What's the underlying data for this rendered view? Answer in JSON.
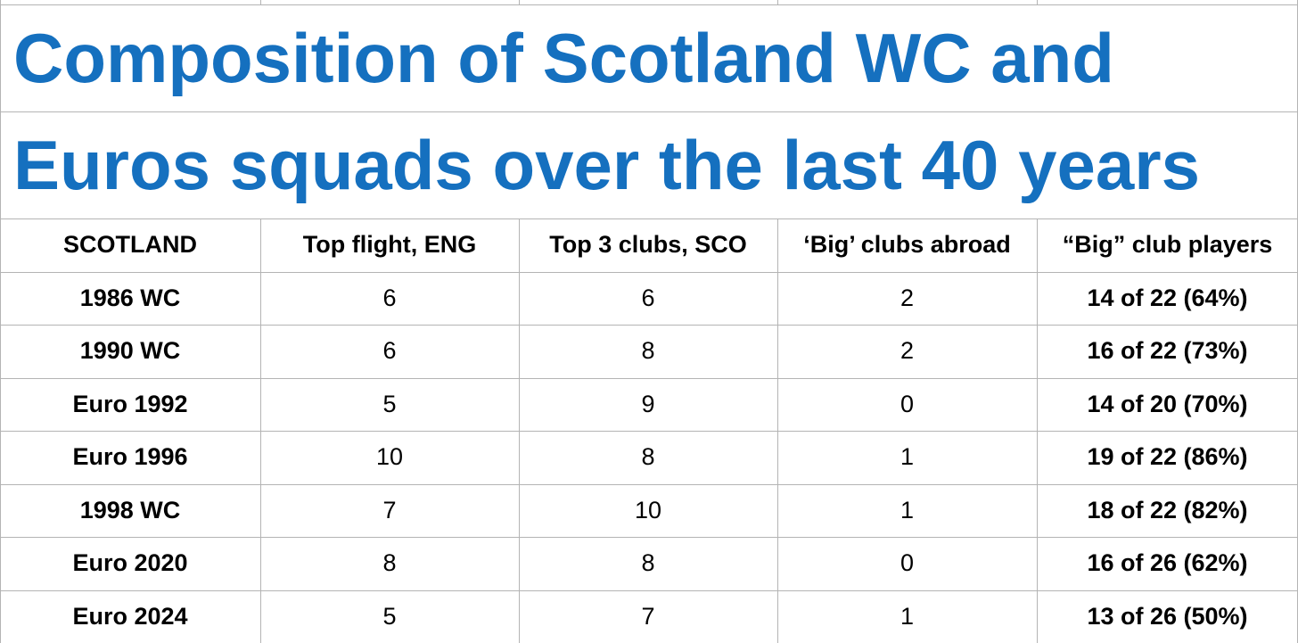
{
  "title": {
    "lines": [
      "Composition of Scotland WC and",
      "Euros squads over the last 40 years"
    ]
  },
  "table": {
    "header": [
      "SCOTLAND",
      "Top flight, ENG",
      "Top 3 clubs, SCO",
      "‘Big’ clubs abroad",
      "“Big” club players"
    ],
    "rows": [
      [
        "1986 WC",
        6,
        6,
        2,
        "14 of 22 (64%)"
      ],
      [
        "1990 WC",
        6,
        8,
        2,
        "16 of 22 (73%)"
      ],
      [
        "Euro 1992",
        5,
        9,
        0,
        "14 of 20 (70%)"
      ],
      [
        "Euro 1996",
        10,
        8,
        1,
        "19 of 22 (86%)"
      ],
      [
        "1998 WC",
        7,
        10,
        1,
        "18 of 22 (82%)"
      ],
      [
        "Euro 2020",
        8,
        8,
        0,
        "16 of 26 (62%)"
      ],
      [
        "Euro 2024",
        5,
        7,
        1,
        "13 of 26 (50%)"
      ]
    ]
  }
}
